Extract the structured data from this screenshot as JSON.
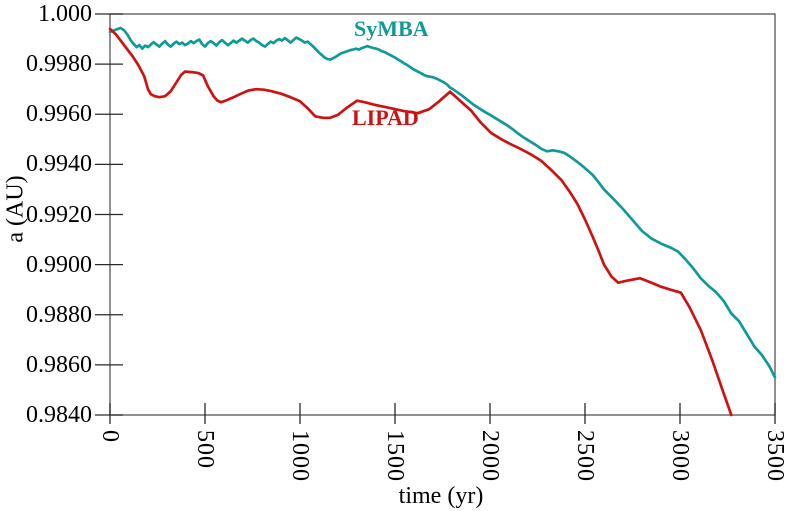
{
  "chart_data": {
    "type": "line",
    "title": "",
    "xlabel": "time (yr)",
    "ylabel": "a (AU)",
    "xlim": [
      0,
      3500
    ],
    "ylim": [
      0.984,
      1.0
    ],
    "grid": false,
    "legend_position": "inline-labels-on-plot",
    "axis_color": "#555555",
    "tick_color": "#2a2a2a",
    "xticks": [
      {
        "value": 0,
        "label": "0"
      },
      {
        "value": 500,
        "label": "500"
      },
      {
        "value": 1000,
        "label": "1000"
      },
      {
        "value": 1500,
        "label": "1500"
      },
      {
        "value": 2000,
        "label": "2000"
      },
      {
        "value": 2500,
        "label": "2500"
      },
      {
        "value": 3000,
        "label": "3000"
      },
      {
        "value": 3500,
        "label": "3500"
      }
    ],
    "yticks": [
      {
        "value": 1.0,
        "label": "1.000"
      },
      {
        "value": 0.998,
        "label": "0.9980"
      },
      {
        "value": 0.996,
        "label": "0.9960"
      },
      {
        "value": 0.994,
        "label": "0.9940"
      },
      {
        "value": 0.992,
        "label": "0.9920"
      },
      {
        "value": 0.99,
        "label": "0.9900"
      },
      {
        "value": 0.988,
        "label": "0.9880"
      },
      {
        "value": 0.986,
        "label": "0.9860"
      },
      {
        "value": 0.984,
        "label": "0.9840"
      }
    ],
    "series": [
      {
        "name": "SyMBA",
        "color": "#0f9a98",
        "points": [
          [
            0,
            0.99928
          ],
          [
            25,
            0.99936
          ],
          [
            55,
            0.99944
          ],
          [
            75,
            0.99934
          ],
          [
            95,
            0.99914
          ],
          [
            110,
            0.99894
          ],
          [
            125,
            0.9988
          ],
          [
            140,
            0.99868
          ],
          [
            155,
            0.99876
          ],
          [
            170,
            0.99862
          ],
          [
            185,
            0.99874
          ],
          [
            200,
            0.99868
          ],
          [
            215,
            0.99878
          ],
          [
            230,
            0.99888
          ],
          [
            245,
            0.99878
          ],
          [
            260,
            0.9987
          ],
          [
            275,
            0.99882
          ],
          [
            290,
            0.99892
          ],
          [
            305,
            0.99878
          ],
          [
            320,
            0.9987
          ],
          [
            335,
            0.99882
          ],
          [
            350,
            0.9989
          ],
          [
            365,
            0.9988
          ],
          [
            380,
            0.99886
          ],
          [
            395,
            0.99876
          ],
          [
            410,
            0.99882
          ],
          [
            425,
            0.99892
          ],
          [
            440,
            0.99884
          ],
          [
            455,
            0.99892
          ],
          [
            470,
            0.99898
          ],
          [
            485,
            0.9988
          ],
          [
            500,
            0.9987
          ],
          [
            515,
            0.99884
          ],
          [
            530,
            0.99892
          ],
          [
            545,
            0.99884
          ],
          [
            560,
            0.99874
          ],
          [
            575,
            0.99888
          ],
          [
            590,
            0.99896
          ],
          [
            605,
            0.99886
          ],
          [
            620,
            0.99876
          ],
          [
            635,
            0.99884
          ],
          [
            650,
            0.99894
          ],
          [
            665,
            0.99886
          ],
          [
            680,
            0.99894
          ],
          [
            695,
            0.99902
          ],
          [
            710,
            0.99894
          ],
          [
            725,
            0.99886
          ],
          [
            740,
            0.99896
          ],
          [
            755,
            0.99902
          ],
          [
            770,
            0.99892
          ],
          [
            785,
            0.99886
          ],
          [
            800,
            0.99876
          ],
          [
            815,
            0.9987
          ],
          [
            830,
            0.9988
          ],
          [
            845,
            0.9989
          ],
          [
            860,
            0.99884
          ],
          [
            875,
            0.99894
          ],
          [
            890,
            0.999
          ],
          [
            905,
            0.99894
          ],
          [
            920,
            0.99904
          ],
          [
            935,
            0.99896
          ],
          [
            950,
            0.99886
          ],
          [
            965,
            0.99896
          ],
          [
            980,
            0.99906
          ],
          [
            995,
            0.999
          ],
          [
            1010,
            0.99894
          ],
          [
            1025,
            0.99886
          ],
          [
            1040,
            0.9989
          ],
          [
            1055,
            0.9988
          ],
          [
            1070,
            0.9987
          ],
          [
            1085,
            0.99858
          ],
          [
            1100,
            0.99846
          ],
          [
            1115,
            0.99836
          ],
          [
            1130,
            0.99826
          ],
          [
            1145,
            0.9982
          ],
          [
            1160,
            0.99818
          ],
          [
            1175,
            0.99824
          ],
          [
            1190,
            0.9983
          ],
          [
            1205,
            0.99838
          ],
          [
            1220,
            0.99844
          ],
          [
            1235,
            0.99848
          ],
          [
            1250,
            0.99852
          ],
          [
            1265,
            0.99856
          ],
          [
            1280,
            0.99858
          ],
          [
            1295,
            0.99862
          ],
          [
            1310,
            0.99858
          ],
          [
            1325,
            0.99864
          ],
          [
            1340,
            0.99868
          ],
          [
            1355,
            0.99872
          ],
          [
            1370,
            0.99868
          ],
          [
            1385,
            0.99864
          ],
          [
            1400,
            0.99862
          ],
          [
            1415,
            0.99858
          ],
          [
            1430,
            0.99852
          ],
          [
            1445,
            0.99848
          ],
          [
            1460,
            0.99842
          ],
          [
            1475,
            0.99836
          ],
          [
            1490,
            0.9983
          ],
          [
            1505,
            0.99824
          ],
          [
            1520,
            0.99816
          ],
          [
            1535,
            0.9981
          ],
          [
            1550,
            0.99802
          ],
          [
            1565,
            0.99796
          ],
          [
            1580,
            0.99788
          ],
          [
            1595,
            0.9978
          ],
          [
            1610,
            0.99774
          ],
          [
            1625,
            0.99768
          ],
          [
            1640,
            0.99762
          ],
          [
            1655,
            0.99756
          ],
          [
            1670,
            0.99752
          ],
          [
            1685,
            0.9975
          ],
          [
            1700,
            0.99748
          ],
          [
            1720,
            0.99742
          ],
          [
            1740,
            0.99734
          ],
          [
            1760,
            0.99726
          ],
          [
            1775,
            0.99718
          ],
          [
            1790,
            0.99706
          ],
          [
            1805,
            0.997
          ],
          [
            1820,
            0.99692
          ],
          [
            1835,
            0.99684
          ],
          [
            1850,
            0.99676
          ],
          [
            1870,
            0.99664
          ],
          [
            1890,
            0.99652
          ],
          [
            1910,
            0.9964
          ],
          [
            1930,
            0.9963
          ],
          [
            1950,
            0.9962
          ],
          [
            1975,
            0.99608
          ],
          [
            2000,
            0.99598
          ],
          [
            2030,
            0.99584
          ],
          [
            2060,
            0.9957
          ],
          [
            2090,
            0.99556
          ],
          [
            2120,
            0.9954
          ],
          [
            2150,
            0.99522
          ],
          [
            2180,
            0.99506
          ],
          [
            2210,
            0.99492
          ],
          [
            2240,
            0.99478
          ],
          [
            2270,
            0.99462
          ],
          [
            2300,
            0.99452
          ],
          [
            2330,
            0.99456
          ],
          [
            2360,
            0.99452
          ],
          [
            2390,
            0.99446
          ],
          [
            2420,
            0.99432
          ],
          [
            2450,
            0.99415
          ],
          [
            2480,
            0.99398
          ],
          [
            2510,
            0.99378
          ],
          [
            2540,
            0.99358
          ],
          [
            2570,
            0.9933
          ],
          [
            2600,
            0.993
          ],
          [
            2650,
            0.99262
          ],
          [
            2700,
            0.99222
          ],
          [
            2750,
            0.99178
          ],
          [
            2800,
            0.99134
          ],
          [
            2850,
            0.99104
          ],
          [
            2900,
            0.99084
          ],
          [
            2950,
            0.99068
          ],
          [
            2990,
            0.99052
          ],
          [
            3030,
            0.9902
          ],
          [
            3070,
            0.98985
          ],
          [
            3110,
            0.98945
          ],
          [
            3150,
            0.98915
          ],
          [
            3190,
            0.9889
          ],
          [
            3230,
            0.98855
          ],
          [
            3270,
            0.98805
          ],
          [
            3310,
            0.98775
          ],
          [
            3350,
            0.98725
          ],
          [
            3390,
            0.98675
          ],
          [
            3430,
            0.9864
          ],
          [
            3470,
            0.98595
          ],
          [
            3500,
            0.9855
          ]
        ]
      },
      {
        "name": "LIPAD",
        "color": "#cd1312",
        "points": [
          [
            0,
            0.9994
          ],
          [
            30,
            0.9992
          ],
          [
            60,
            0.9989
          ],
          [
            90,
            0.9986
          ],
          [
            120,
            0.9983
          ],
          [
            150,
            0.99795
          ],
          [
            180,
            0.99752
          ],
          [
            200,
            0.997
          ],
          [
            215,
            0.9968
          ],
          [
            235,
            0.99672
          ],
          [
            260,
            0.99668
          ],
          [
            290,
            0.99672
          ],
          [
            320,
            0.99692
          ],
          [
            350,
            0.99728
          ],
          [
            375,
            0.99758
          ],
          [
            395,
            0.9977
          ],
          [
            430,
            0.99768
          ],
          [
            465,
            0.99764
          ],
          [
            490,
            0.99755
          ],
          [
            515,
            0.99712
          ],
          [
            545,
            0.99672
          ],
          [
            565,
            0.99655
          ],
          [
            585,
            0.99648
          ],
          [
            610,
            0.99655
          ],
          [
            650,
            0.99668
          ],
          [
            690,
            0.99682
          ],
          [
            730,
            0.99695
          ],
          [
            770,
            0.997
          ],
          [
            810,
            0.99698
          ],
          [
            850,
            0.99692
          ],
          [
            900,
            0.99682
          ],
          [
            950,
            0.99668
          ],
          [
            1000,
            0.99652
          ],
          [
            1040,
            0.99624
          ],
          [
            1080,
            0.99592
          ],
          [
            1120,
            0.99586
          ],
          [
            1160,
            0.99586
          ],
          [
            1200,
            0.99598
          ],
          [
            1250,
            0.99628
          ],
          [
            1300,
            0.99654
          ],
          [
            1340,
            0.99648
          ],
          [
            1390,
            0.99638
          ],
          [
            1440,
            0.9963
          ],
          [
            1490,
            0.99622
          ],
          [
            1550,
            0.99612
          ],
          [
            1620,
            0.99604
          ],
          [
            1680,
            0.9962
          ],
          [
            1730,
            0.9965
          ],
          [
            1790,
            0.9969
          ],
          [
            1845,
            0.99652
          ],
          [
            1900,
            0.99615
          ],
          [
            1950,
            0.99568
          ],
          [
            2005,
            0.99526
          ],
          [
            2060,
            0.995
          ],
          [
            2110,
            0.9948
          ],
          [
            2160,
            0.99462
          ],
          [
            2215,
            0.9944
          ],
          [
            2270,
            0.99414
          ],
          [
            2330,
            0.99372
          ],
          [
            2375,
            0.99338
          ],
          [
            2420,
            0.9929
          ],
          [
            2460,
            0.99242
          ],
          [
            2500,
            0.9918
          ],
          [
            2540,
            0.99112
          ],
          [
            2570,
            0.99058
          ],
          [
            2600,
            0.99
          ],
          [
            2640,
            0.98952
          ],
          [
            2675,
            0.98928
          ],
          [
            2720,
            0.98936
          ],
          [
            2790,
            0.98946
          ],
          [
            2850,
            0.98928
          ],
          [
            2900,
            0.98912
          ],
          [
            2950,
            0.989
          ],
          [
            3005,
            0.98888
          ],
          [
            3050,
            0.9883
          ],
          [
            3110,
            0.98738
          ],
          [
            3170,
            0.98618
          ],
          [
            3220,
            0.98508
          ],
          [
            3270,
            0.984
          ]
        ]
      }
    ]
  }
}
